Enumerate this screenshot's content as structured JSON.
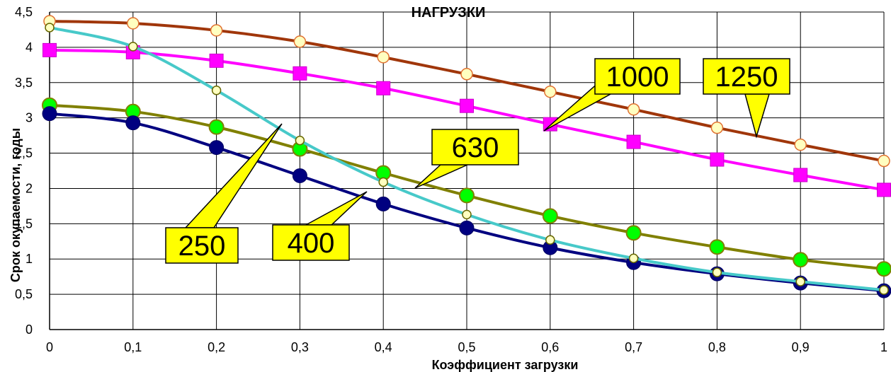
{
  "chart_data": {
    "type": "line",
    "title": "НАГРУЗКИ",
    "xlabel": "Коэффициент загрузки",
    "ylabel": "Срок окупаемости, годы",
    "x": [
      0,
      0.1,
      0.2,
      0.3,
      0.4,
      0.5,
      0.6,
      0.7,
      0.8,
      0.9,
      1
    ],
    "x_tick_labels": [
      "0",
      "0,1",
      "0,2",
      "0,3",
      "0,4",
      "0,5",
      "0,6",
      "0,7",
      "0,8",
      "0,9",
      "1"
    ],
    "y_tick_labels": [
      "0",
      "0,5",
      "1",
      "1,5",
      "2",
      "2,5",
      "3",
      "3,5",
      "4",
      "4,5"
    ],
    "xlim": [
      0,
      1
    ],
    "ylim": [
      0,
      4.5
    ],
    "grid": true,
    "series": [
      {
        "name": "250",
        "color": "#47c9c9",
        "marker": "circle-small",
        "values": [
          4.28,
          4.01,
          3.39,
          2.68,
          2.09,
          1.63,
          1.27,
          1.01,
          0.81,
          0.68,
          0.56
        ]
      },
      {
        "name": "400",
        "color": "#000080",
        "marker": "circle-large",
        "values": [
          3.06,
          2.93,
          2.58,
          2.18,
          1.78,
          1.44,
          1.16,
          0.95,
          0.79,
          0.66,
          0.55
        ]
      },
      {
        "name": "630",
        "color": "#808000",
        "marker": "circle-green",
        "values": [
          3.18,
          3.09,
          2.87,
          2.56,
          2.22,
          1.9,
          1.61,
          1.37,
          1.17,
          0.99,
          0.86
        ]
      },
      {
        "name": "1000",
        "color": "#ff00ff",
        "marker": "square",
        "values": [
          3.96,
          3.93,
          3.81,
          3.63,
          3.42,
          3.17,
          2.91,
          2.66,
          2.41,
          2.19,
          1.98
        ]
      },
      {
        "name": "1250",
        "color": "#a0360a",
        "marker": "circle-small",
        "values": [
          4.37,
          4.34,
          4.24,
          4.08,
          3.86,
          3.62,
          3.37,
          3.12,
          2.86,
          2.62,
          2.39
        ]
      }
    ],
    "callouts": [
      {
        "text": "250",
        "series": "250"
      },
      {
        "text": "400",
        "series": "400"
      },
      {
        "text": "630",
        "series": "630"
      },
      {
        "text": "1000",
        "series": "1000"
      },
      {
        "text": "1250",
        "series": "1250"
      }
    ],
    "colors": {
      "callout_fill": "#ffff00",
      "grid": "#000000",
      "marker_face": "#ffffc0",
      "marker_edge_1250": "#e07030",
      "marker_green": "#00ff00"
    }
  }
}
